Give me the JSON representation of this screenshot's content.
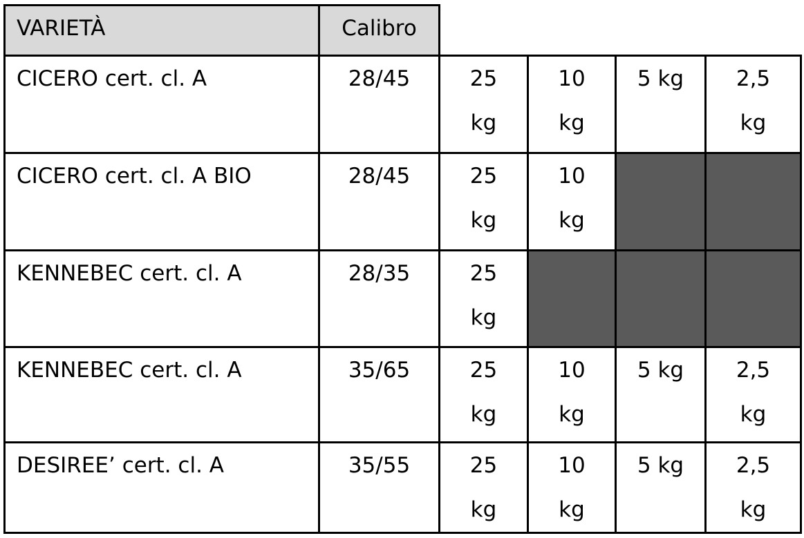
{
  "table": {
    "header": [
      "VARIETÀ",
      "Calibro"
    ],
    "rows": [
      {
        "variety": "CICERO cert. cl. A",
        "calibre": "28/45",
        "packs": [
          "25 kg",
          "10 kg",
          "5 kg",
          "2,5 kg"
        ]
      },
      {
        "variety": "CICERO cert. cl. A BIO",
        "calibre": "28/45",
        "packs": [
          "25 kg",
          "10 kg"
        ]
      },
      {
        "variety": "KENNEBEC cert. cl. A",
        "calibre": "28/35",
        "packs": [
          "25 kg"
        ]
      },
      {
        "variety": "KENNEBEC cert. cl. A",
        "calibre": "35/65",
        "packs": [
          "25 kg",
          "10 kg",
          "5 kg",
          "2,5 kg"
        ]
      },
      {
        "variety": "DESIREE’ cert. cl. A",
        "calibre": "35/55",
        "packs": [
          "25 kg",
          "10 kg",
          "5 kg",
          "2,5 kg"
        ]
      }
    ]
  }
}
